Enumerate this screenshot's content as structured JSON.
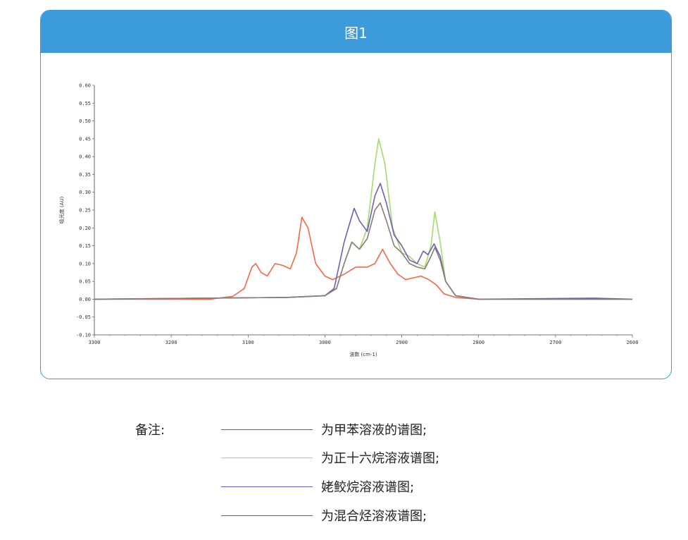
{
  "figure": {
    "title": "图1"
  },
  "chart_data": {
    "type": "line",
    "xlabel": "波数 (cm-1)",
    "ylabel": "吸光度 (AU)",
    "xlim": [
      3300,
      2600
    ],
    "ylim": [
      -0.1,
      0.6
    ],
    "x_ticks": [
      3300,
      3200,
      3100,
      3000,
      2900,
      2800,
      2700,
      2600
    ],
    "y_ticks": [
      "0.60",
      "0.55",
      "0.50",
      "0.45",
      "0.40",
      "0.35",
      "0.30",
      "0.25",
      "0.20",
      "0.15",
      "0.10",
      "0.05",
      "0.00",
      "-0.05",
      "-0.10"
    ],
    "series": [
      {
        "color": "#f06a4a",
        "points": [
          [
            3300,
            0
          ],
          [
            3150,
            0
          ],
          [
            3120,
            0.008
          ],
          [
            3105,
            0.03
          ],
          [
            3095,
            0.09
          ],
          [
            3090,
            0.1
          ],
          [
            3083,
            0.075
          ],
          [
            3075,
            0.065
          ],
          [
            3065,
            0.1
          ],
          [
            3055,
            0.095
          ],
          [
            3045,
            0.085
          ],
          [
            3037,
            0.13
          ],
          [
            3030,
            0.23
          ],
          [
            3022,
            0.2
          ],
          [
            3012,
            0.1
          ],
          [
            3000,
            0.065
          ],
          [
            2990,
            0.055
          ],
          [
            2975,
            0.07
          ],
          [
            2960,
            0.09
          ],
          [
            2945,
            0.09
          ],
          [
            2935,
            0.1
          ],
          [
            2925,
            0.14
          ],
          [
            2915,
            0.1
          ],
          [
            2905,
            0.07
          ],
          [
            2895,
            0.055
          ],
          [
            2885,
            0.06
          ],
          [
            2875,
            0.065
          ],
          [
            2865,
            0.055
          ],
          [
            2855,
            0.04
          ],
          [
            2845,
            0.015
          ],
          [
            2830,
            0.005
          ],
          [
            2800,
            0
          ],
          [
            2600,
            0
          ]
        ]
      },
      {
        "color": "#a6d96a",
        "points": [
          [
            3300,
            0
          ],
          [
            3050,
            0.005
          ],
          [
            3000,
            0.01
          ],
          [
            2985,
            0.03
          ],
          [
            2975,
            0.1
          ],
          [
            2965,
            0.16
          ],
          [
            2955,
            0.14
          ],
          [
            2945,
            0.2
          ],
          [
            2935,
            0.38
          ],
          [
            2930,
            0.45
          ],
          [
            2922,
            0.38
          ],
          [
            2912,
            0.2
          ],
          [
            2900,
            0.13
          ],
          [
            2890,
            0.12
          ],
          [
            2880,
            0.1
          ],
          [
            2870,
            0.09
          ],
          [
            2862,
            0.15
          ],
          [
            2857,
            0.245
          ],
          [
            2850,
            0.16
          ],
          [
            2843,
            0.05
          ],
          [
            2830,
            0.01
          ],
          [
            2800,
            0
          ],
          [
            2600,
            0
          ]
        ]
      },
      {
        "color": "#6f5fb8",
        "points": [
          [
            3300,
            0
          ],
          [
            3050,
            0.005
          ],
          [
            3000,
            0.01
          ],
          [
            2988,
            0.03
          ],
          [
            2975,
            0.16
          ],
          [
            2962,
            0.255
          ],
          [
            2955,
            0.22
          ],
          [
            2945,
            0.19
          ],
          [
            2935,
            0.29
          ],
          [
            2928,
            0.325
          ],
          [
            2920,
            0.27
          ],
          [
            2910,
            0.18
          ],
          [
            2900,
            0.15
          ],
          [
            2890,
            0.11
          ],
          [
            2880,
            0.1
          ],
          [
            2872,
            0.135
          ],
          [
            2866,
            0.125
          ],
          [
            2858,
            0.155
          ],
          [
            2850,
            0.12
          ],
          [
            2843,
            0.05
          ],
          [
            2830,
            0.01
          ],
          [
            2800,
            0
          ],
          [
            2650,
            0.003
          ],
          [
            2600,
            0
          ]
        ]
      },
      {
        "color": "#8a7a78",
        "points": [
          [
            3300,
            0
          ],
          [
            3050,
            0.005
          ],
          [
            3000,
            0.01
          ],
          [
            2985,
            0.03
          ],
          [
            2975,
            0.1
          ],
          [
            2965,
            0.16
          ],
          [
            2955,
            0.14
          ],
          [
            2945,
            0.17
          ],
          [
            2935,
            0.25
          ],
          [
            2928,
            0.27
          ],
          [
            2920,
            0.22
          ],
          [
            2910,
            0.15
          ],
          [
            2900,
            0.13
          ],
          [
            2890,
            0.1
          ],
          [
            2880,
            0.09
          ],
          [
            2870,
            0.085
          ],
          [
            2862,
            0.12
          ],
          [
            2857,
            0.145
          ],
          [
            2850,
            0.11
          ],
          [
            2843,
            0.05
          ],
          [
            2830,
            0.01
          ],
          [
            2800,
            0
          ],
          [
            2600,
            0
          ]
        ]
      }
    ]
  },
  "legend": {
    "heading": "备注:",
    "items": [
      {
        "text": "为甲苯溶液的谱图;",
        "color": "#c0394a"
      },
      {
        "text": "为正十六烷溶液谱图;",
        "color": "#a6d96a"
      },
      {
        "text": "姥鲛烷溶液谱图;",
        "color": "#6f5fb8"
      },
      {
        "text": "为混合烃溶液谱图;",
        "color": "#c0394a"
      }
    ]
  }
}
